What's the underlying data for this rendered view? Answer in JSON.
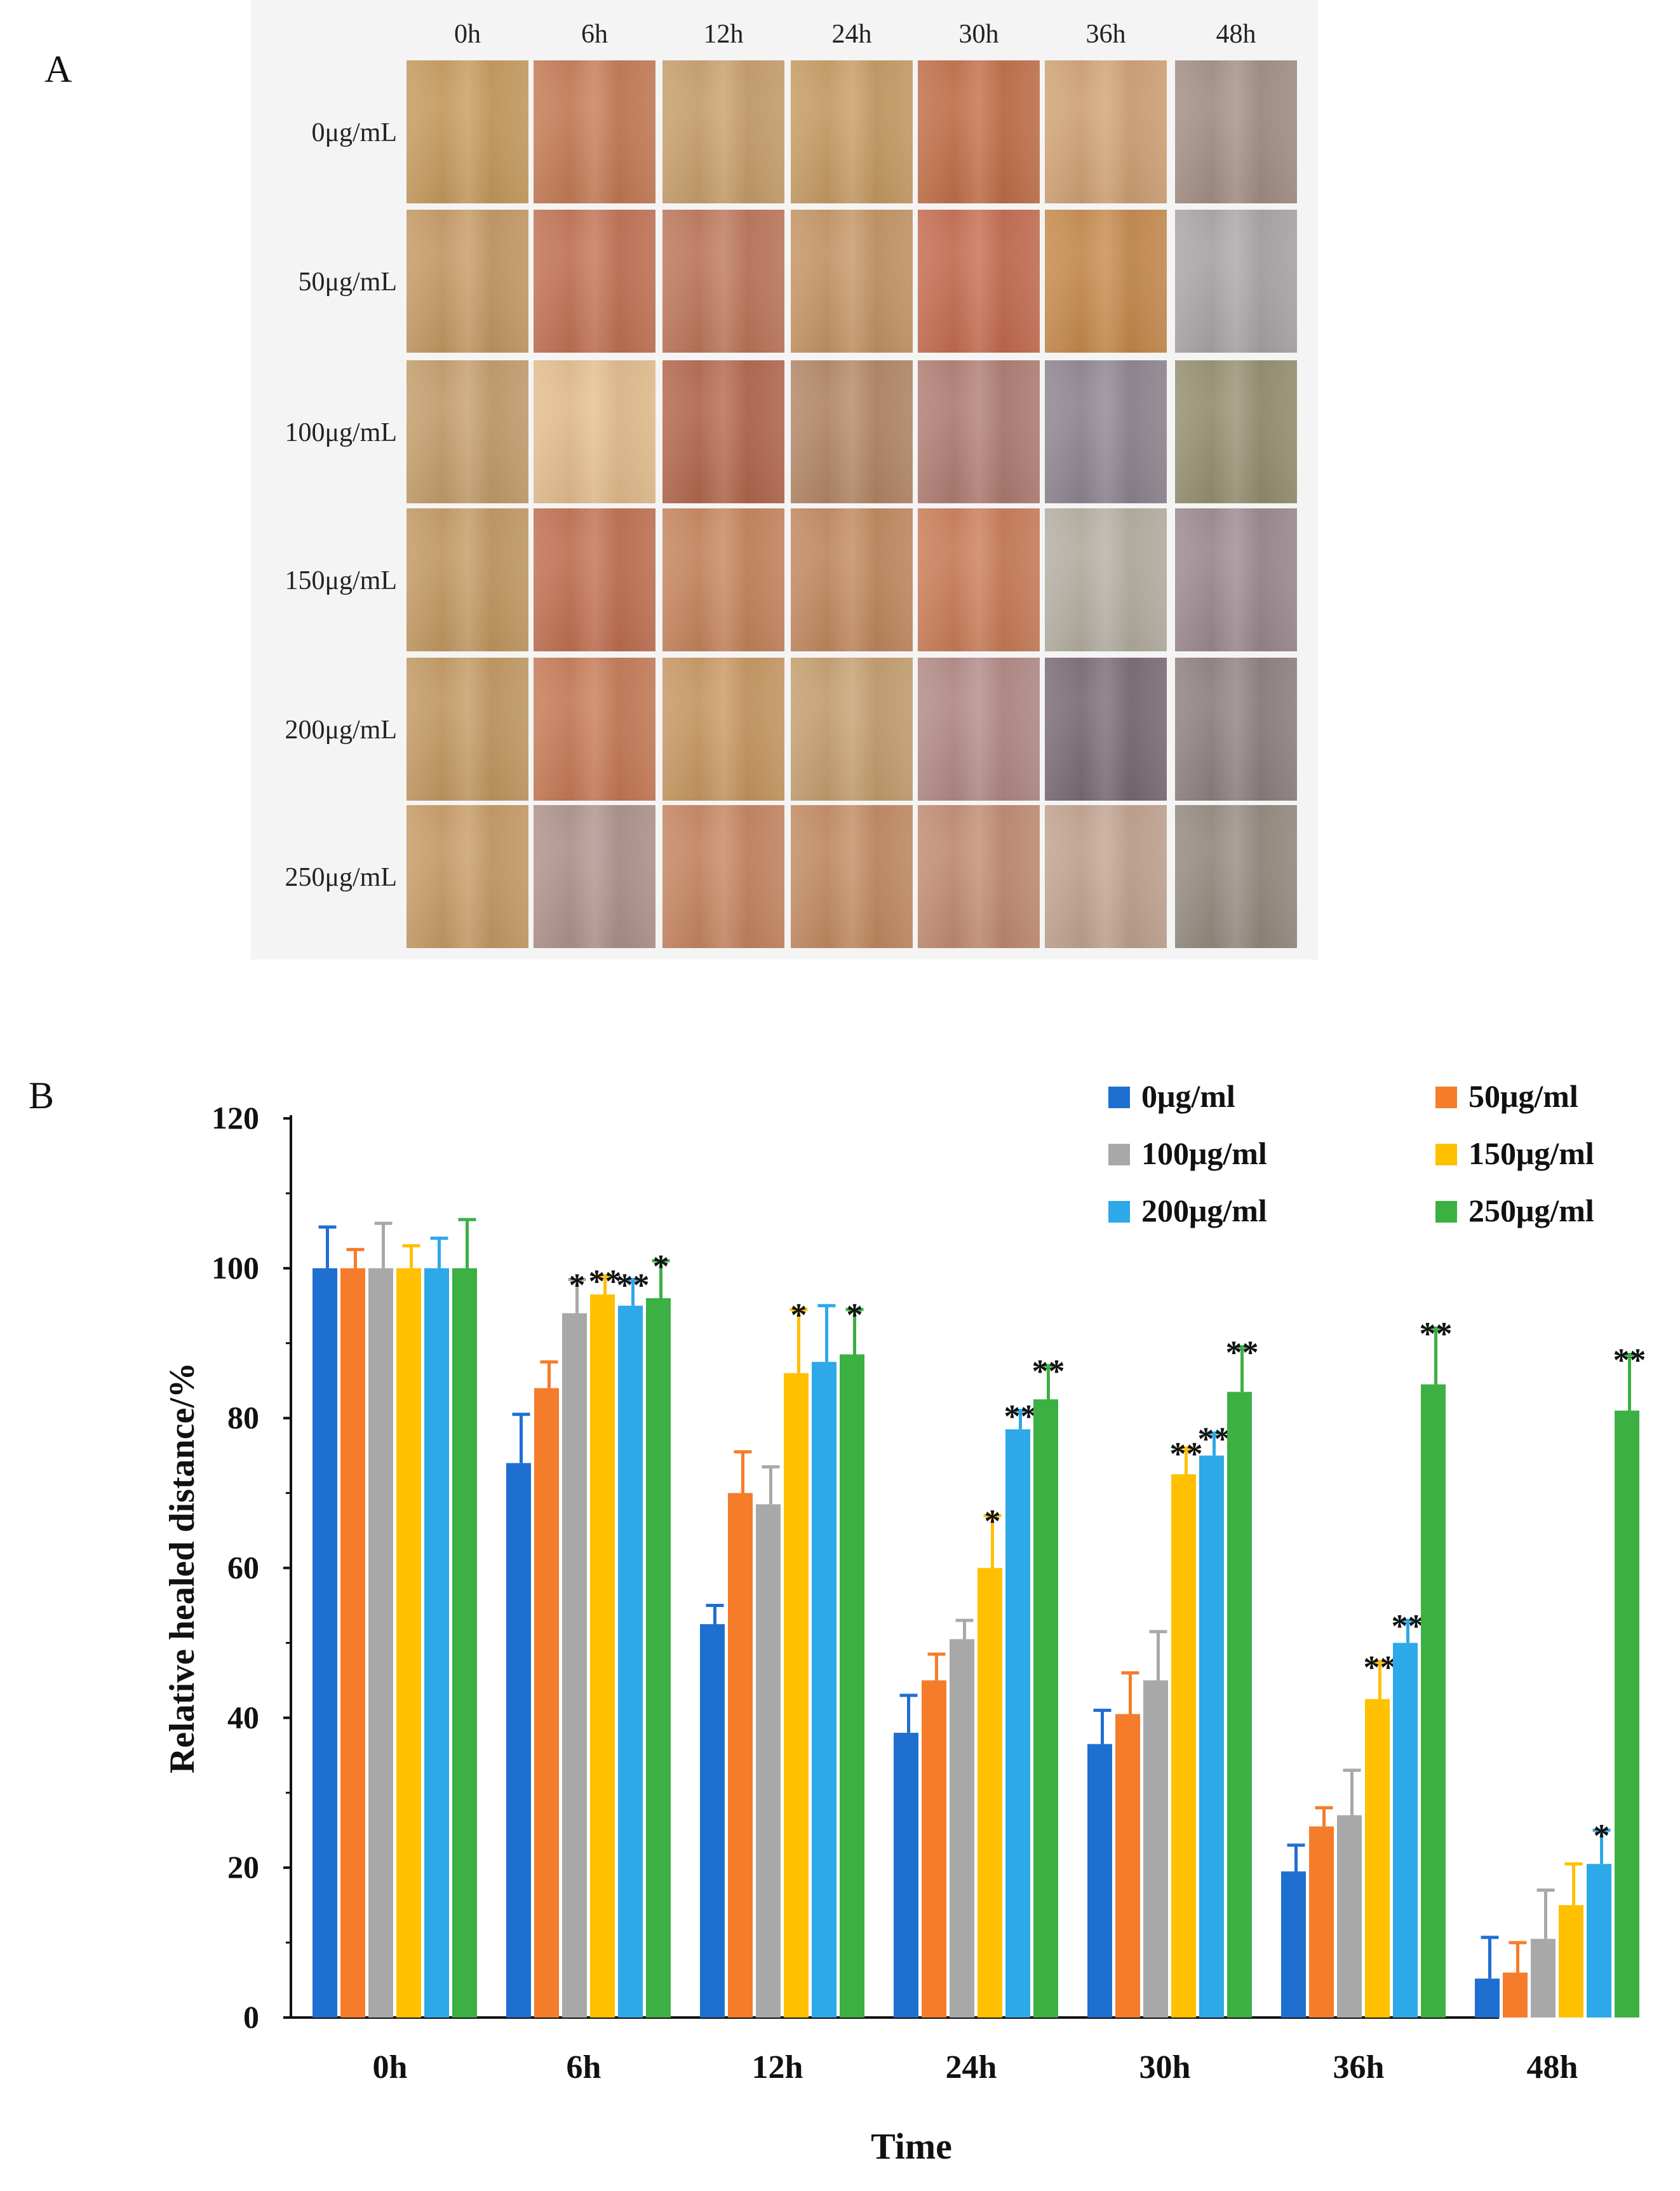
{
  "panel_a": {
    "label": "A",
    "columns": [
      "0h",
      "6h",
      "12h",
      "24h",
      "30h",
      "36h",
      "48h"
    ],
    "rows": [
      "0μg/mL",
      "50μg/mL",
      "100μg/mL",
      "150μg/mL",
      "200μg/mL",
      "250μg/mL"
    ],
    "tile_colors": [
      [
        "#c99b5c",
        "#c77a52",
        "#caa06a",
        "#c99c62",
        "#c46e45",
        "#d4a374",
        "#a58f84"
      ],
      [
        "#c79a62",
        "#c47151",
        "#bf7658",
        "#c79563",
        "#c86b4d",
        "#c98a4a",
        "#aca6a8"
      ],
      [
        "#c79e6a",
        "#e8c08e",
        "#b5664a",
        "#b58765",
        "#b17d72",
        "#8f8590",
        "#96906f"
      ],
      [
        "#c59a60",
        "#c36f4e",
        "#c8845a",
        "#c4885c",
        "#cc7c55",
        "#b7b0a3",
        "#9c8a91"
      ],
      [
        "#c59a60",
        "#c97a54",
        "#cb9860",
        "#c8a06e",
        "#b48a86",
        "#7a6a75",
        "#8f8080"
      ],
      [
        "#c99c64",
        "#b1938d",
        "#c8855e",
        "#c58b5f",
        "#c48b71",
        "#c4a490",
        "#958b7f"
      ]
    ]
  },
  "panel_b": {
    "label": "B"
  },
  "colors": {
    "0μg/ml": "#1f6fd1",
    "50μg/ml": "#f57c2a",
    "100μg/ml": "#a8a8a8",
    "150μg/ml": "#ffc000",
    "200μg/ml": "#2da8e8",
    "250μg/ml": "#3cb043"
  },
  "chart_data": {
    "type": "bar",
    "xlabel": "Time",
    "ylabel": "Relative healed distance/%",
    "ylim": [
      0,
      120
    ],
    "yticks": [
      0,
      20,
      40,
      60,
      80,
      100,
      120
    ],
    "categories": [
      "0h",
      "6h",
      "12h",
      "24h",
      "30h",
      "36h",
      "48h"
    ],
    "legend_position": "top-right",
    "series": [
      {
        "name": "0μg/ml",
        "values": [
          100,
          74,
          52.5,
          38,
          36.5,
          19.5,
          5.2
        ],
        "errors": [
          5.5,
          6.5,
          2.5,
          5,
          4.5,
          3.5,
          5.5
        ],
        "marks": [
          "",
          "",
          "",
          "",
          "",
          "",
          ""
        ]
      },
      {
        "name": "50μg/ml",
        "values": [
          100,
          84,
          70,
          45,
          40.5,
          25.5,
          6
        ],
        "errors": [
          2.5,
          3.5,
          5.5,
          3.5,
          5.5,
          2.5,
          4
        ],
        "marks": [
          "",
          "",
          "",
          "",
          "",
          "",
          ""
        ]
      },
      {
        "name": "100μg/ml",
        "values": [
          100,
          94,
          68.5,
          50.5,
          45,
          27,
          10.5
        ],
        "errors": [
          6,
          4.5,
          5,
          2.5,
          6.5,
          6,
          6.5
        ],
        "marks": [
          "",
          "*",
          "",
          "",
          "",
          "",
          ""
        ]
      },
      {
        "name": "150μg/ml",
        "values": [
          100,
          96.5,
          86,
          60,
          72.5,
          42.5,
          15
        ],
        "errors": [
          3,
          2.5,
          8.5,
          7,
          3.5,
          5,
          5.5
        ],
        "marks": [
          "",
          "**",
          "*",
          "*",
          "**",
          "**",
          ""
        ]
      },
      {
        "name": "200μg/ml",
        "values": [
          100,
          95,
          87.5,
          78.5,
          75,
          50,
          20.5
        ],
        "errors": [
          4,
          3.5,
          7.5,
          2.5,
          3,
          3,
          4.5
        ],
        "marks": [
          "",
          "**",
          "",
          "**",
          "**",
          "**",
          "*"
        ]
      },
      {
        "name": "250μg/ml",
        "values": [
          100,
          96,
          88.5,
          82.5,
          83.5,
          84.5,
          81
        ],
        "errors": [
          6.5,
          5,
          6,
          4.5,
          6,
          7.5,
          7.5
        ],
        "marks": [
          "",
          "*",
          "*",
          "**",
          "**",
          "**",
          "**"
        ]
      }
    ]
  }
}
